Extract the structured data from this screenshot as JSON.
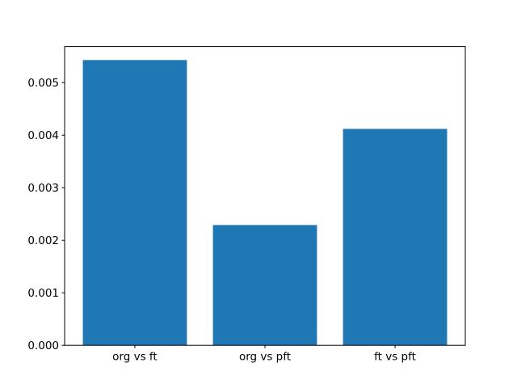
{
  "chart_data": {
    "type": "bar",
    "categories": [
      "org vs ft",
      "org vs pft",
      "ft vs pft"
    ],
    "values": [
      0.00543,
      0.00229,
      0.00412
    ],
    "title": "",
    "xlabel": "",
    "ylabel": "",
    "ylim": [
      0,
      0.005687
    ],
    "ytick_values": [
      0,
      0.001,
      0.002,
      0.003,
      0.004,
      0.005
    ],
    "ytick_labels": [
      "0.000",
      "0.001",
      "0.002",
      "0.003",
      "0.004",
      "0.005"
    ],
    "bar_color": "#1f77b4",
    "spine_color": "#000000",
    "background_color": "#ffffff",
    "grid": false,
    "legend": null,
    "bar_width_fraction": 0.8,
    "x_data_margin": 0.05
  }
}
